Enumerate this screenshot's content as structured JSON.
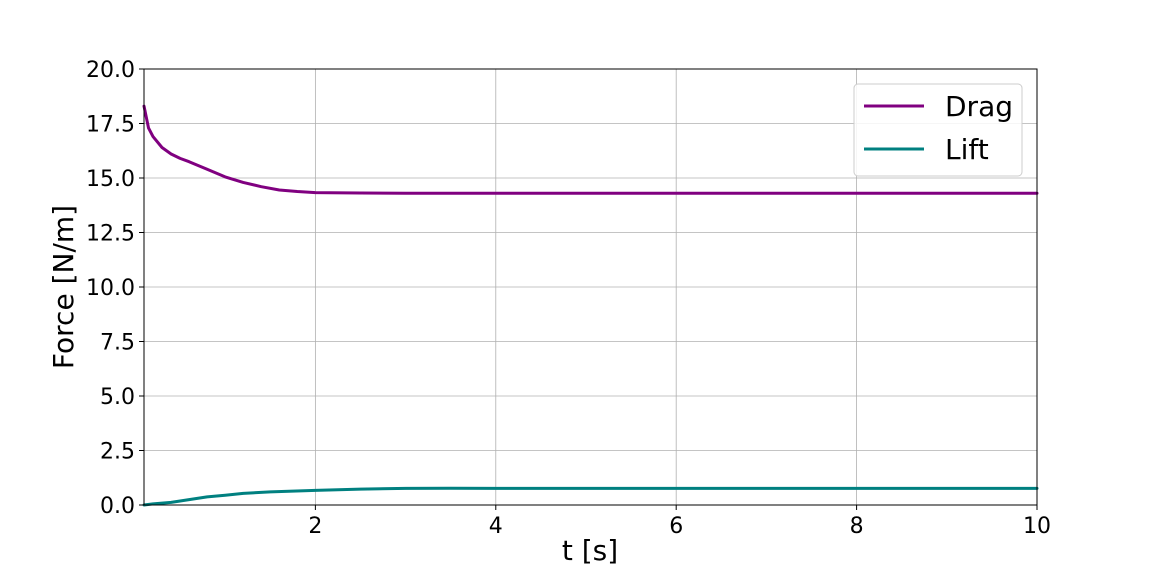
{
  "chart_data": {
    "type": "line",
    "title": "",
    "xlabel": "t [s]",
    "ylabel": "Force [N/m]",
    "xlim": [
      0.1,
      10
    ],
    "ylim": [
      0,
      20
    ],
    "xticks": [
      2,
      4,
      6,
      8,
      10
    ],
    "yticks": [
      0.0,
      2.5,
      5.0,
      7.5,
      10.0,
      12.5,
      15.0,
      17.5,
      20.0
    ],
    "xtick_labels": [
      "2",
      "4",
      "6",
      "8",
      "10"
    ],
    "ytick_labels": [
      "0.0",
      "2.5",
      "5.0",
      "7.5",
      "10.0",
      "12.5",
      "15.0",
      "17.5",
      "20.0"
    ],
    "grid": true,
    "legend_position": "top-right",
    "series": [
      {
        "name": "Drag",
        "color": "#800080",
        "x": [
          0.1,
          0.15,
          0.2,
          0.3,
          0.4,
          0.5,
          0.6,
          0.8,
          1.0,
          1.2,
          1.4,
          1.6,
          1.8,
          2.0,
          2.5,
          3.0,
          4.0,
          5.0,
          6.0,
          7.0,
          8.0,
          9.0,
          10.0
        ],
        "y": [
          18.3,
          17.3,
          16.9,
          16.4,
          16.1,
          15.9,
          15.75,
          15.4,
          15.05,
          14.8,
          14.6,
          14.45,
          14.38,
          14.33,
          14.31,
          14.3,
          14.3,
          14.3,
          14.3,
          14.3,
          14.3,
          14.3,
          14.3
        ]
      },
      {
        "name": "Lift",
        "color": "#008080",
        "x": [
          0.1,
          0.2,
          0.4,
          0.6,
          0.8,
          1.0,
          1.2,
          1.5,
          2.0,
          2.5,
          3.0,
          3.5,
          4.0,
          5.0,
          6.0,
          7.0,
          8.0,
          9.0,
          10.0
        ],
        "y": [
          0.0,
          0.05,
          0.12,
          0.25,
          0.37,
          0.45,
          0.53,
          0.6,
          0.67,
          0.73,
          0.76,
          0.77,
          0.76,
          0.76,
          0.76,
          0.76,
          0.76,
          0.76,
          0.76
        ]
      }
    ]
  }
}
